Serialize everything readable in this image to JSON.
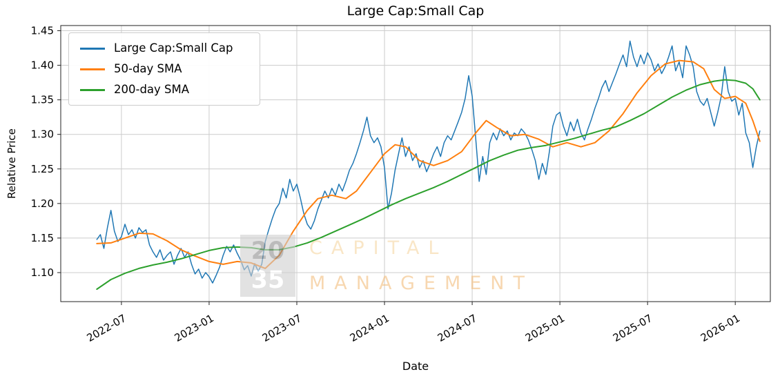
{
  "watermark": {
    "top_number": "20",
    "bottom_number": "35",
    "top_word": "CAPITAL",
    "bottom_word": "MANAGEMENT"
  },
  "chart_data": {
    "type": "line",
    "title": "Large Cap:Small Cap",
    "xlabel": "Date",
    "ylabel": "Relative Price",
    "grid": true,
    "legend_position": "upper left",
    "xlim": [
      2022.154,
      2026.2
    ],
    "ylim": [
      1.058,
      1.4575
    ],
    "x_ticks": [
      {
        "v": 2022.5,
        "label": "2022-07"
      },
      {
        "v": 2023.0,
        "label": "2023-01"
      },
      {
        "v": 2023.5,
        "label": "2023-07"
      },
      {
        "v": 2024.0,
        "label": "2024-01"
      },
      {
        "v": 2024.5,
        "label": "2024-07"
      },
      {
        "v": 2025.0,
        "label": "2025-01"
      },
      {
        "v": 2025.5,
        "label": "2025-07"
      },
      {
        "v": 2026.0,
        "label": "2026-01"
      }
    ],
    "y_ticks": [
      {
        "v": 1.1,
        "label": "1.10"
      },
      {
        "v": 1.15,
        "label": "1.15"
      },
      {
        "v": 1.2,
        "label": "1.20"
      },
      {
        "v": 1.25,
        "label": "1.25"
      },
      {
        "v": 1.3,
        "label": "1.30"
      },
      {
        "v": 1.35,
        "label": "1.35"
      },
      {
        "v": 1.4,
        "label": "1.40"
      },
      {
        "v": 1.45,
        "label": "1.45"
      }
    ],
    "series": [
      {
        "name": "Large Cap:Small Cap",
        "color": "#1f77b4",
        "width": 1.5,
        "x": [
          2022.36,
          2022.38,
          2022.4,
          2022.42,
          2022.44,
          2022.46,
          2022.48,
          2022.5,
          2022.52,
          2022.54,
          2022.56,
          2022.58,
          2022.6,
          2022.62,
          2022.64,
          2022.66,
          2022.68,
          2022.7,
          2022.72,
          2022.74,
          2022.76,
          2022.78,
          2022.8,
          2022.82,
          2022.84,
          2022.86,
          2022.88,
          2022.9,
          2022.92,
          2022.94,
          2022.96,
          2022.98,
          2023,
          2023.02,
          2023.04,
          2023.06,
          2023.08,
          2023.1,
          2023.12,
          2023.14,
          2023.16,
          2023.18,
          2023.2,
          2023.22,
          2023.24,
          2023.26,
          2023.28,
          2023.3,
          2023.32,
          2023.34,
          2023.36,
          2023.38,
          2023.4,
          2023.42,
          2023.44,
          2023.46,
          2023.48,
          2023.5,
          2023.52,
          2023.54,
          2023.56,
          2023.58,
          2023.6,
          2023.62,
          2023.64,
          2023.66,
          2023.68,
          2023.7,
          2023.72,
          2023.74,
          2023.76,
          2023.78,
          2023.8,
          2023.82,
          2023.84,
          2023.86,
          2023.88,
          2023.9,
          2023.92,
          2023.94,
          2023.96,
          2023.98,
          2024,
          2024.02,
          2024.04,
          2024.06,
          2024.08,
          2024.1,
          2024.12,
          2024.14,
          2024.16,
          2024.18,
          2024.2,
          2024.22,
          2024.24,
          2024.26,
          2024.28,
          2024.3,
          2024.32,
          2024.34,
          2024.36,
          2024.38,
          2024.4,
          2024.42,
          2024.44,
          2024.46,
          2024.48,
          2024.5,
          2024.52,
          2024.54,
          2024.56,
          2024.58,
          2024.6,
          2024.62,
          2024.64,
          2024.66,
          2024.68,
          2024.7,
          2024.72,
          2024.74,
          2024.76,
          2024.78,
          2024.8,
          2024.82,
          2024.84,
          2024.86,
          2024.88,
          2024.9,
          2024.92,
          2024.94,
          2024.96,
          2024.98,
          2025,
          2025.02,
          2025.04,
          2025.06,
          2025.08,
          2025.1,
          2025.12,
          2025.14,
          2025.16,
          2025.18,
          2025.2,
          2025.22,
          2025.24,
          2025.26,
          2025.28,
          2025.3,
          2025.32,
          2025.34,
          2025.36,
          2025.38,
          2025.4,
          2025.42,
          2025.44,
          2025.46,
          2025.48,
          2025.5,
          2025.52,
          2025.54,
          2025.56,
          2025.58,
          2025.6,
          2025.62,
          2025.64,
          2025.66,
          2025.68,
          2025.7,
          2025.72,
          2025.74,
          2025.76,
          2025.78,
          2025.8,
          2025.82,
          2025.84,
          2025.86,
          2025.88,
          2025.9,
          2025.92,
          2025.94,
          2025.96,
          2025.98,
          2026,
          2026.02,
          2026.04,
          2026.06,
          2026.08,
          2026.1,
          2026.12,
          2026.14
        ],
        "y": [
          1.148,
          1.155,
          1.135,
          1.165,
          1.19,
          1.16,
          1.145,
          1.152,
          1.17,
          1.155,
          1.162,
          1.15,
          1.165,
          1.158,
          1.162,
          1.14,
          1.13,
          1.122,
          1.133,
          1.118,
          1.125,
          1.13,
          1.112,
          1.125,
          1.135,
          1.122,
          1.13,
          1.112,
          1.098,
          1.105,
          1.092,
          1.1,
          1.094,
          1.085,
          1.096,
          1.108,
          1.125,
          1.138,
          1.13,
          1.14,
          1.128,
          1.118,
          1.104,
          1.11,
          1.095,
          1.113,
          1.102,
          1.112,
          1.145,
          1.162,
          1.178,
          1.192,
          1.2,
          1.222,
          1.208,
          1.235,
          1.218,
          1.228,
          1.208,
          1.185,
          1.17,
          1.163,
          1.175,
          1.192,
          1.205,
          1.218,
          1.208,
          1.222,
          1.212,
          1.228,
          1.218,
          1.232,
          1.248,
          1.258,
          1.272,
          1.288,
          1.305,
          1.325,
          1.298,
          1.288,
          1.295,
          1.282,
          1.252,
          1.192,
          1.215,
          1.248,
          1.272,
          1.295,
          1.268,
          1.282,
          1.262,
          1.272,
          1.252,
          1.262,
          1.246,
          1.258,
          1.272,
          1.282,
          1.268,
          1.288,
          1.298,
          1.292,
          1.305,
          1.318,
          1.332,
          1.352,
          1.385,
          1.355,
          1.295,
          1.232,
          1.268,
          1.242,
          1.288,
          1.302,
          1.292,
          1.308,
          1.298,
          1.305,
          1.292,
          1.302,
          1.298,
          1.308,
          1.302,
          1.292,
          1.278,
          1.262,
          1.235,
          1.258,
          1.242,
          1.275,
          1.312,
          1.328,
          1.332,
          1.312,
          1.298,
          1.318,
          1.305,
          1.322,
          1.302,
          1.292,
          1.308,
          1.322,
          1.338,
          1.352,
          1.368,
          1.378,
          1.362,
          1.375,
          1.388,
          1.402,
          1.415,
          1.398,
          1.435,
          1.412,
          1.398,
          1.415,
          1.402,
          1.418,
          1.408,
          1.392,
          1.402,
          1.388,
          1.398,
          1.412,
          1.428,
          1.392,
          1.405,
          1.382,
          1.428,
          1.415,
          1.398,
          1.362,
          1.348,
          1.342,
          1.352,
          1.332,
          1.312,
          1.332,
          1.355,
          1.398,
          1.362,
          1.348,
          1.352,
          1.328,
          1.345,
          1.302,
          1.288,
          1.252,
          1.282,
          1.305
        ]
      },
      {
        "name": "50-day SMA",
        "color": "#ff7f0e",
        "width": 2,
        "x": [
          2022.36,
          2022.44,
          2022.52,
          2022.6,
          2022.68,
          2022.76,
          2022.84,
          2022.92,
          2023,
          2023.08,
          2023.16,
          2023.24,
          2023.32,
          2023.4,
          2023.48,
          2023.56,
          2023.62,
          2023.7,
          2023.78,
          2023.84,
          2023.92,
          2024,
          2024.06,
          2024.12,
          2024.2,
          2024.28,
          2024.36,
          2024.44,
          2024.52,
          2024.58,
          2024.64,
          2024.72,
          2024.8,
          2024.88,
          2024.96,
          2025.04,
          2025.12,
          2025.2,
          2025.28,
          2025.36,
          2025.44,
          2025.52,
          2025.6,
          2025.68,
          2025.76,
          2025.82,
          2025.88,
          2025.94,
          2026,
          2026.06,
          2026.1,
          2026.14
        ],
        "y": [
          1.142,
          1.143,
          1.15,
          1.157,
          1.156,
          1.146,
          1.133,
          1.124,
          1.116,
          1.112,
          1.116,
          1.114,
          1.106,
          1.125,
          1.16,
          1.19,
          1.207,
          1.212,
          1.207,
          1.218,
          1.245,
          1.272,
          1.285,
          1.282,
          1.262,
          1.255,
          1.262,
          1.275,
          1.302,
          1.32,
          1.31,
          1.298,
          1.3,
          1.293,
          1.282,
          1.288,
          1.282,
          1.288,
          1.305,
          1.33,
          1.36,
          1.385,
          1.402,
          1.407,
          1.405,
          1.395,
          1.365,
          1.352,
          1.355,
          1.345,
          1.32,
          1.29
        ]
      },
      {
        "name": "200-day SMA",
        "color": "#2ca02c",
        "width": 2,
        "x": [
          2022.36,
          2022.44,
          2022.52,
          2022.6,
          2022.68,
          2022.76,
          2022.84,
          2022.92,
          2023,
          2023.08,
          2023.16,
          2023.24,
          2023.32,
          2023.4,
          2023.48,
          2023.56,
          2023.64,
          2023.72,
          2023.8,
          2023.88,
          2023.96,
          2024.04,
          2024.12,
          2024.2,
          2024.28,
          2024.36,
          2024.44,
          2024.52,
          2024.6,
          2024.68,
          2024.76,
          2024.84,
          2024.92,
          2025,
          2025.08,
          2025.16,
          2025.24,
          2025.32,
          2025.4,
          2025.48,
          2025.56,
          2025.64,
          2025.72,
          2025.8,
          2025.88,
          2025.94,
          2026,
          2026.06,
          2026.1,
          2026.14
        ],
        "y": [
          1.076,
          1.09,
          1.099,
          1.106,
          1.111,
          1.115,
          1.12,
          1.126,
          1.132,
          1.136,
          1.137,
          1.136,
          1.133,
          1.133,
          1.137,
          1.143,
          1.151,
          1.16,
          1.169,
          1.178,
          1.188,
          1.198,
          1.207,
          1.215,
          1.223,
          1.232,
          1.242,
          1.252,
          1.262,
          1.27,
          1.277,
          1.281,
          1.284,
          1.289,
          1.294,
          1.3,
          1.306,
          1.311,
          1.32,
          1.33,
          1.342,
          1.354,
          1.364,
          1.372,
          1.377,
          1.379,
          1.378,
          1.374,
          1.366,
          1.35
        ]
      }
    ]
  }
}
